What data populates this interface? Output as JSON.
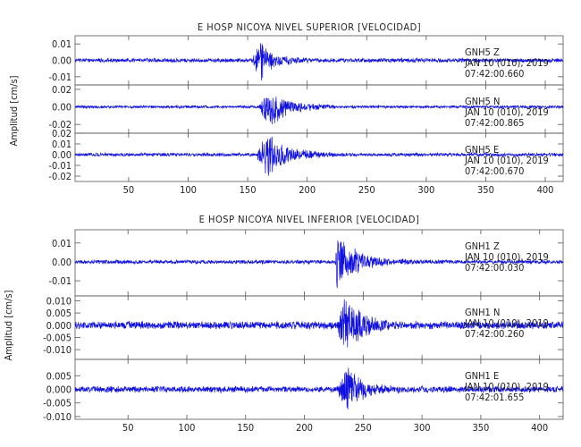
{
  "chart_data": [
    {
      "type": "line",
      "title": "E HOSP NICOYA NIVEL SUPERIOR [VELOCIDAD]",
      "ylabel": "Amplitud [cm/s]",
      "xlim": [
        5,
        415
      ],
      "xticks": [
        50,
        100,
        150,
        200,
        250,
        300,
        350,
        400
      ],
      "xtick_labels": [
        "50",
        "100",
        "150",
        "200",
        "250",
        "300",
        "350",
        "400"
      ],
      "series": [
        {
          "station": "GNH5",
          "component": "Z",
          "date_line": "JAN 10 (010), 2019",
          "time": "07:42:00.660",
          "ylim": [
            -0.015,
            0.015
          ],
          "yticks": [
            0.01,
            0.0,
            -0.01
          ],
          "ytick_labels": [
            "0.01",
            "0.00",
            "-0.01"
          ],
          "noise": 0.0014,
          "onset": 155,
          "peak": 0.013,
          "rise": 4,
          "decay": 9,
          "coda": 0.18,
          "seed": 11,
          "color": "#1010e0"
        },
        {
          "station": "GNH5",
          "component": "N",
          "date_line": "JAN 10 (010), 2019",
          "time": "07:42:00.865",
          "ylim": [
            -0.03,
            0.025
          ],
          "yticks": [
            0.02,
            0.0,
            -0.02
          ],
          "ytick_labels": [
            "0.02",
            "0.00",
            "-0.02"
          ],
          "noise": 0.0018,
          "onset": 160,
          "peak": 0.022,
          "rise": 9,
          "decay": 14,
          "coda": 0.2,
          "seed": 23,
          "color": "#1010e0"
        },
        {
          "station": "GNH5",
          "component": "E",
          "date_line": "JAN 10 (010), 2019",
          "time": "07:42:00.670",
          "ylim": [
            -0.025,
            0.02
          ],
          "yticks": [
            0.02,
            0.01,
            0.0,
            -0.01,
            -0.02
          ],
          "ytick_labels": [
            "0.02",
            "0.01",
            "0.00",
            "-0.01",
            "-0.02"
          ],
          "noise": 0.0018,
          "onset": 158,
          "peak": 0.021,
          "rise": 10,
          "decay": 14,
          "coda": 0.2,
          "seed": 37,
          "color": "#1010e0"
        }
      ]
    },
    {
      "type": "line",
      "title": "E HOSP NICOYA NIVEL INFERIOR [VELOCIDAD]",
      "ylabel": "Amplitud [cm/s]",
      "xlim": [
        5,
        420
      ],
      "xticks": [
        50,
        100,
        150,
        200,
        250,
        300,
        350,
        400
      ],
      "xtick_labels": [
        "50",
        "100",
        "150",
        "200",
        "250",
        "300",
        "350",
        "400"
      ],
      "series": [
        {
          "station": "GNH1",
          "component": "Z",
          "date_line": "JAN 10 (010), 2019",
          "time": "07:42:00.030",
          "ylim": [
            -0.018,
            0.017
          ],
          "yticks": [
            0.01,
            0.0,
            -0.01
          ],
          "ytick_labels": [
            "0.01",
            "0.00",
            "-0.01"
          ],
          "noise": 0.0012,
          "onset": 226,
          "peak": 0.016,
          "rise": 2,
          "decay": 12,
          "coda": 0.2,
          "seed": 53,
          "color": "#1010e0"
        },
        {
          "station": "GNH1",
          "component": "N",
          "date_line": "JAN 10 (010), 2019",
          "time": "07:42:00.260",
          "ylim": [
            -0.014,
            0.012
          ],
          "yticks": [
            0.01,
            0.005,
            0.0,
            -0.005,
            -0.01
          ],
          "ytick_labels": [
            "0.010",
            "0.005",
            "0.000",
            "-0.005",
            "-0.010"
          ],
          "noise": 0.0018,
          "onset": 228,
          "peak": 0.011,
          "rise": 8,
          "decay": 12,
          "coda": 0.2,
          "seed": 71,
          "color": "#1010e0"
        },
        {
          "station": "GNH1",
          "component": "E",
          "date_line": "JAN 10 (010), 2019",
          "time": "07:42:01.655",
          "ylim": [
            -0.011,
            0.011
          ],
          "yticks": [
            0.005,
            0.0,
            -0.005,
            -0.01
          ],
          "ytick_labels": [
            "0.005",
            "0.000",
            "-0.005",
            "-0.010"
          ],
          "noise": 0.0013,
          "onset": 228,
          "peak": 0.0075,
          "rise": 9,
          "decay": 12,
          "coda": 0.2,
          "seed": 97,
          "color": "#1010e0"
        }
      ]
    }
  ]
}
